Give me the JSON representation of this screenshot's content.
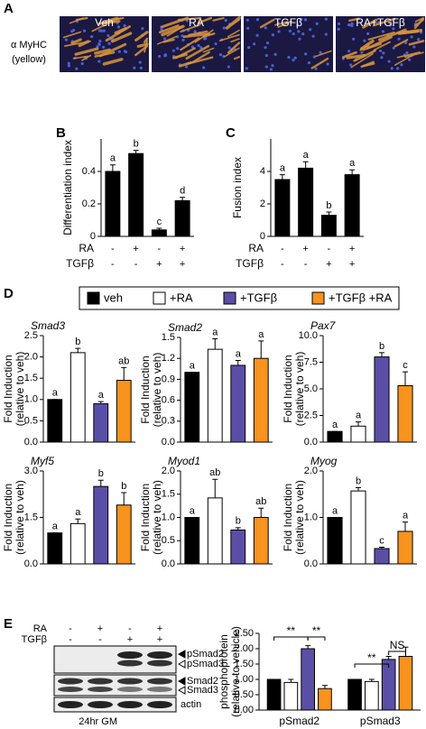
{
  "panel_a": {
    "letter": "A",
    "stain": "α MyHC",
    "stain_note": "(yellow)",
    "conditions": [
      "Veh",
      "RA",
      "TGFβ",
      "RA+TGFβ"
    ]
  },
  "panel_b_letter": "B",
  "panel_c_letter": "C",
  "panel_d_letter": "D",
  "panel_e_letter": "E",
  "legend": [
    {
      "name": "veh",
      "color": "#000000"
    },
    {
      "name": "+RA",
      "color": "#ffffff"
    },
    {
      "name": "+TGFβ",
      "color": "#5a4fa6"
    },
    {
      "name": "+TGFβ +RA",
      "color": "#f7931e"
    }
  ],
  "blot": {
    "conditions": [
      {
        "label": "RA",
        "marks": [
          "-",
          "+",
          "-",
          "+"
        ]
      },
      {
        "label": "TGFβ",
        "marks": [
          "-",
          "-",
          "+",
          "+"
        ]
      }
    ],
    "bands": [
      "pSmad2",
      "pSmad3",
      "Smad2",
      "Smad3",
      "actin"
    ],
    "caption": "24hr GM"
  },
  "chart_data": [
    {
      "type": "bar",
      "ylabel": "Differentiation index",
      "values": [
        0.4,
        0.51,
        0.04,
        0.22
      ],
      "errors": [
        0.04,
        0.02,
        0.01,
        0.02
      ],
      "annotations": [
        "a",
        "b",
        "c",
        "d"
      ],
      "color": "#000000",
      "ylim": [
        0,
        0.6
      ],
      "yticks": [
        0,
        0.2,
        0.4
      ],
      "conditions": [
        {
          "label": "RA",
          "marks": [
            "-",
            "+",
            "-",
            "+"
          ]
        },
        {
          "label": "TGFβ",
          "marks": [
            "-",
            "-",
            "+",
            "+"
          ]
        }
      ]
    },
    {
      "type": "bar",
      "ylabel": "Fusion index",
      "values": [
        3.5,
        4.2,
        1.3,
        3.8
      ],
      "errors": [
        0.3,
        0.4,
        0.2,
        0.3
      ],
      "annotations": [
        "a",
        "a",
        "b",
        "a"
      ],
      "color": "#000000",
      "ylim": [
        0,
        6
      ],
      "yticks": [
        0,
        2,
        4
      ],
      "conditions": [
        {
          "label": "RA",
          "marks": [
            "-",
            "+",
            "-",
            "+"
          ]
        },
        {
          "label": "TGFβ",
          "marks": [
            "-",
            "-",
            "+",
            "+"
          ]
        }
      ]
    },
    {
      "type": "bar",
      "title": "Smad3",
      "ylabel": "Fold Induction",
      "ylabel_note": "(relative to veh)",
      "values": [
        1.0,
        2.1,
        0.9,
        1.45
      ],
      "errors": [
        0,
        0.1,
        0.05,
        0.3
      ],
      "annotations": [
        "a",
        "b",
        "a",
        "ab"
      ],
      "ylim": [
        0,
        2.5
      ],
      "yticks": [
        {
          "value": 0,
          "label": "0.0"
        },
        0.5,
        {
          "value": 1,
          "label": "1.0"
        },
        1.5,
        {
          "value": 2,
          "label": "2.0"
        },
        2.5
      ]
    },
    {
      "type": "bar",
      "title": "Smad2",
      "ylabel": "Fold Induction",
      "ylabel_note": "(relative to veh)",
      "values": [
        1.0,
        1.33,
        1.1,
        1.2
      ],
      "errors": [
        0,
        0.15,
        0.07,
        0.25
      ],
      "annotations": [
        "a",
        "a",
        "a",
        "a"
      ],
      "ylim": [
        0,
        1.5
      ],
      "yticks": [
        {
          "value": 0,
          "label": "0.0"
        },
        0.3,
        0.6,
        0.9,
        1.2,
        1.5
      ]
    },
    {
      "type": "bar",
      "title": "Pax7",
      "ylabel": "Fold Induction",
      "ylabel_note": "(relative to veh)",
      "values": [
        1.0,
        1.5,
        8.0,
        5.3
      ],
      "errors": [
        0,
        0.4,
        0.4,
        1.3
      ],
      "annotations": [
        "a",
        "a",
        "b",
        "c"
      ],
      "ylim": [
        0,
        10
      ],
      "yticks": [
        {
          "value": 0,
          "label": "0.0"
        },
        2.5,
        {
          "value": 5,
          "label": "5.0"
        },
        7.5,
        {
          "value": 10,
          "label": "10.0"
        }
      ]
    },
    {
      "type": "bar",
      "title": "Myf5",
      "ylabel": "Fold Induction",
      "ylabel_note": "(relative to veh)",
      "values": [
        1.0,
        1.3,
        2.5,
        1.9
      ],
      "errors": [
        0,
        0.15,
        0.2,
        0.4
      ],
      "annotations": [
        "a",
        "a",
        "b",
        "b"
      ],
      "ylim": [
        0,
        3
      ],
      "yticks": [
        {
          "value": 0,
          "label": "0.0"
        },
        1.5,
        {
          "value": 3,
          "label": "3.0"
        }
      ]
    },
    {
      "type": "bar",
      "title": "Myod1",
      "ylabel": "Fold Induction",
      "ylabel_note": "(relative to veh)",
      "values": [
        1.0,
        1.42,
        0.73,
        1.0
      ],
      "errors": [
        0,
        0.4,
        0.05,
        0.2
      ],
      "annotations": [
        "a",
        "ab",
        "b",
        "ab"
      ],
      "ylim": [
        0,
        2
      ],
      "yticks": [
        {
          "value": 0,
          "label": "0.0"
        },
        0.5,
        {
          "value": 1,
          "label": "1.0"
        },
        1.5,
        {
          "value": 2,
          "label": "2.0"
        }
      ]
    },
    {
      "type": "bar",
      "title": "Myog",
      "ylabel": "Fold Induction",
      "ylabel_note": "(relative to veh)",
      "values": [
        1.0,
        1.57,
        0.33,
        0.7
      ],
      "errors": [
        0,
        0.07,
        0.03,
        0.2
      ],
      "annotations": [
        "a",
        "b",
        "c",
        "a"
      ],
      "ylim": [
        0,
        2
      ],
      "yticks": [
        {
          "value": 0,
          "label": "0.0"
        },
        {
          "value": 1,
          "label": "1.0"
        },
        {
          "value": 2,
          "label": "2.0"
        }
      ]
    },
    {
      "type": "grouped_bar",
      "ylabel": "phosphoprotein",
      "ylabel_note": "(relative to vehicle)",
      "categories": [
        "pSmad2",
        "pSmad3"
      ],
      "series": [
        {
          "color": "#000000",
          "values": [
            1.0,
            1.0
          ],
          "errors": [
            0,
            0
          ]
        },
        {
          "color": "#ffffff",
          "values": [
            0.9,
            0.93
          ],
          "errors": [
            0.1,
            0.07
          ]
        },
        {
          "color": "#5a4fa6",
          "values": [
            2.0,
            1.65
          ],
          "errors": [
            0.1,
            0.1
          ]
        },
        {
          "color": "#f7931e",
          "values": [
            0.7,
            1.75
          ],
          "errors": [
            0.1,
            0.3
          ]
        }
      ],
      "significance": [
        "**",
        "**",
        "**",
        "NS"
      ],
      "ylim": [
        0,
        2.5
      ],
      "yticks": [
        {
          "value": 0,
          "label": "0.00"
        },
        {
          "value": 0.5,
          "label": "0.50"
        },
        {
          "value": 1,
          "label": "1.00"
        },
        {
          "value": 1.5,
          "label": "1.50"
        },
        {
          "value": 2,
          "label": "2.00"
        },
        {
          "value": 2.5,
          "label": "2.50"
        }
      ]
    }
  ]
}
